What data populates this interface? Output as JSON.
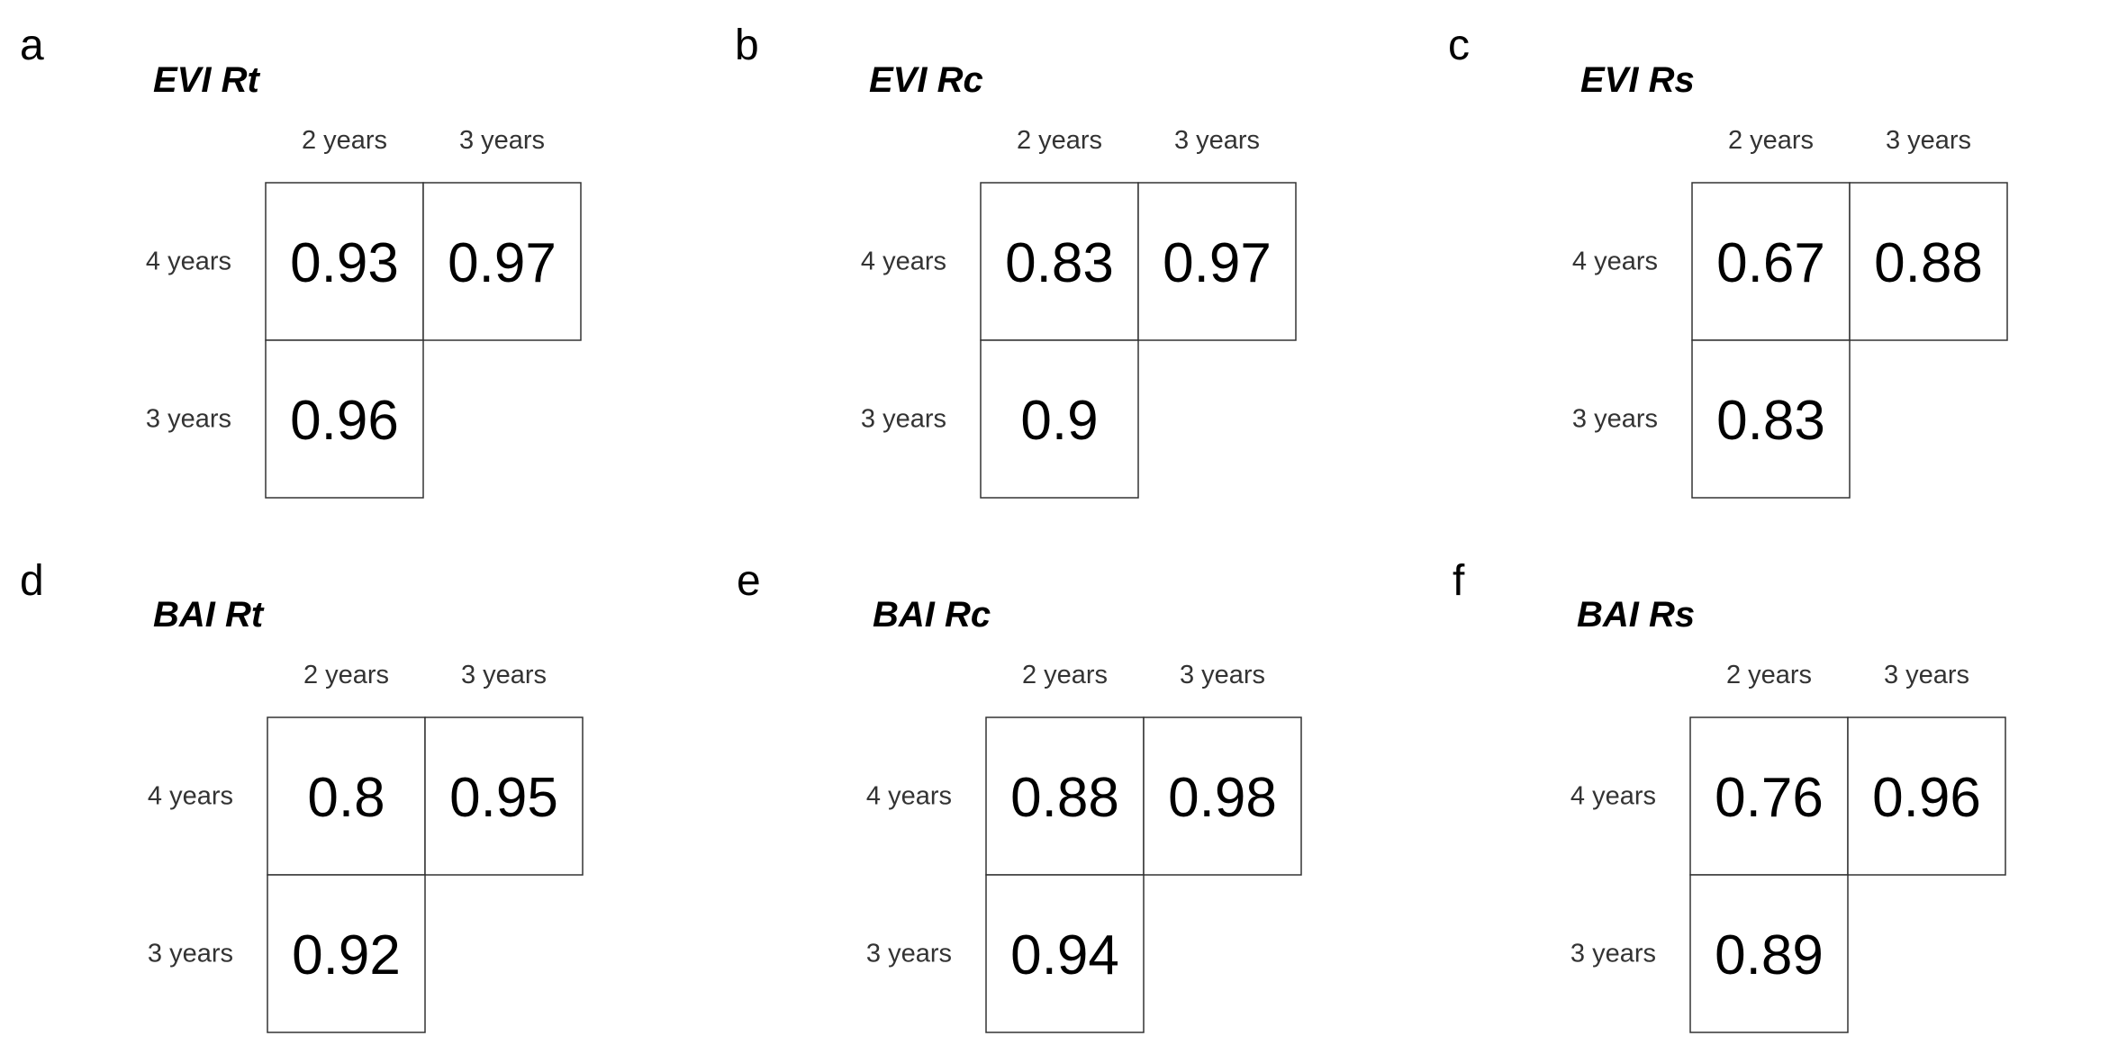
{
  "chart_data": [
    {
      "type": "heatmap",
      "panel": "a",
      "title": "EVI Rt",
      "columns": [
        "2 years",
        "3 years"
      ],
      "rows": [
        "4 years",
        "3 years"
      ],
      "values": [
        [
          0.93,
          0.97
        ],
        [
          0.96,
          null
        ]
      ]
    },
    {
      "type": "heatmap",
      "panel": "b",
      "title": "EVI Rc",
      "columns": [
        "2 years",
        "3 years"
      ],
      "rows": [
        "4 years",
        "3 years"
      ],
      "values": [
        [
          0.83,
          0.97
        ],
        [
          0.9,
          null
        ]
      ]
    },
    {
      "type": "heatmap",
      "panel": "c",
      "title": "EVI Rs",
      "columns": [
        "2 years",
        "3 years"
      ],
      "rows": [
        "4 years",
        "3 years"
      ],
      "values": [
        [
          0.67,
          0.88
        ],
        [
          0.83,
          null
        ]
      ]
    },
    {
      "type": "heatmap",
      "panel": "d",
      "title": "BAI Rt",
      "columns": [
        "2 years",
        "3 years"
      ],
      "rows": [
        "4 years",
        "3 years"
      ],
      "values": [
        [
          0.8,
          0.95
        ],
        [
          0.92,
          null
        ]
      ]
    },
    {
      "type": "heatmap",
      "panel": "e",
      "title": "BAI Rc",
      "columns": [
        "2 years",
        "3 years"
      ],
      "rows": [
        "4 years",
        "3 years"
      ],
      "values": [
        [
          0.88,
          0.98
        ],
        [
          0.94,
          null
        ]
      ]
    },
    {
      "type": "heatmap",
      "panel": "f",
      "title": "BAI Rs",
      "columns": [
        "2 years",
        "3 years"
      ],
      "rows": [
        "4 years",
        "3 years"
      ],
      "values": [
        [
          0.76,
          0.96
        ],
        [
          0.89,
          null
        ]
      ]
    }
  ]
}
